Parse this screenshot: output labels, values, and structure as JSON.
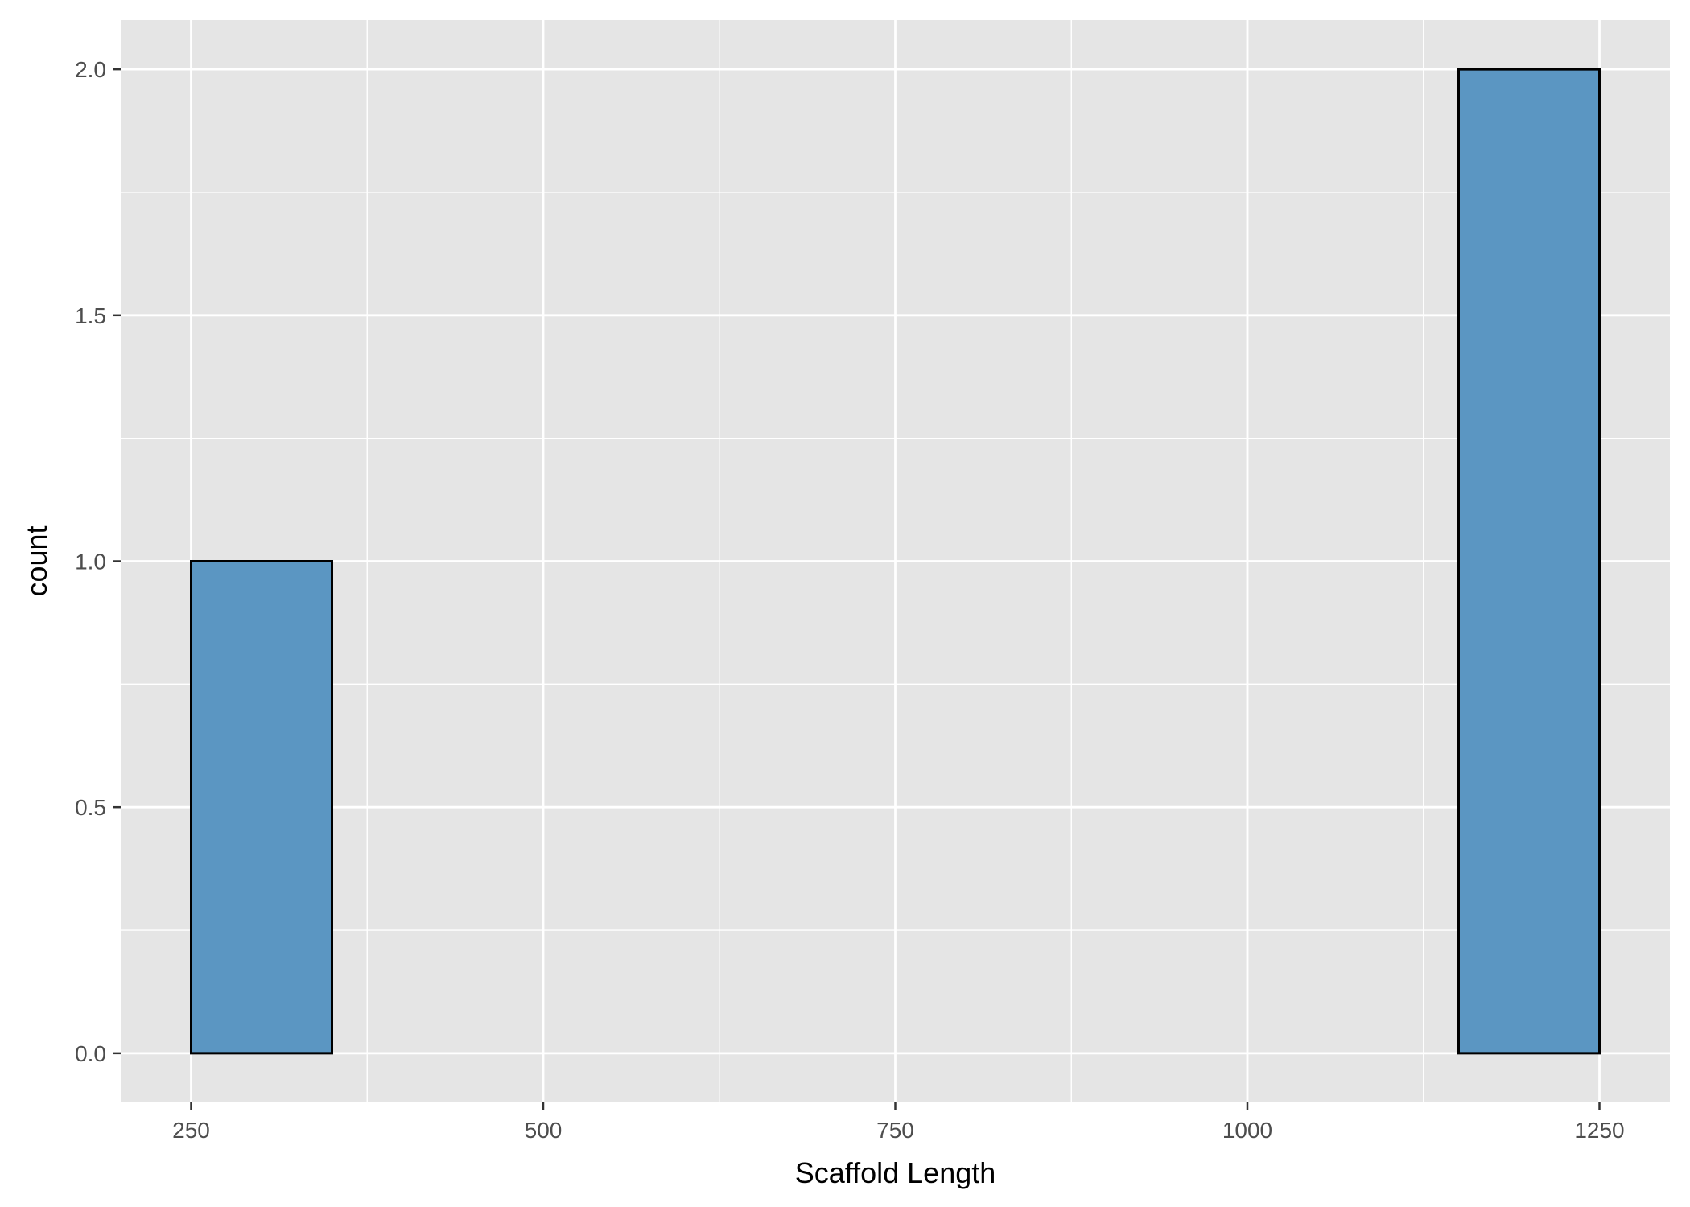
{
  "chart_data": {
    "type": "bar",
    "histogram": true,
    "title": "",
    "xlabel": "Scaffold Length",
    "ylabel": "count",
    "bins": [
      {
        "x0": 250,
        "x1": 350,
        "count": 1
      },
      {
        "x0": 350,
        "x1": 450,
        "count": 0
      },
      {
        "x0": 450,
        "x1": 550,
        "count": 0
      },
      {
        "x0": 550,
        "x1": 650,
        "count": 0
      },
      {
        "x0": 650,
        "x1": 750,
        "count": 0
      },
      {
        "x0": 750,
        "x1": 850,
        "count": 0
      },
      {
        "x0": 850,
        "x1": 950,
        "count": 0
      },
      {
        "x0": 950,
        "x1": 1050,
        "count": 0
      },
      {
        "x0": 1050,
        "x1": 1150,
        "count": 0
      },
      {
        "x0": 1150,
        "x1": 1250,
        "count": 2
      }
    ],
    "xlim": [
      200,
      1300
    ],
    "ylim": [
      -0.1,
      2.1
    ],
    "xticks": [
      250,
      500,
      750,
      1000,
      1250
    ],
    "xtick_labels": [
      "250",
      "500",
      "750",
      "1000",
      "1250"
    ],
    "yticks": [
      0,
      0.5,
      1,
      1.5,
      2
    ],
    "ytick_labels": [
      "0.0",
      "0.5",
      "1.0",
      "1.5",
      "2.0"
    ],
    "grid": true,
    "legend": "none",
    "colors": {
      "bar_fill": "#5b96c2",
      "bar_outline": "#000000",
      "panel_background": "#e5e5e5",
      "grid_line": "#ffffff"
    }
  }
}
